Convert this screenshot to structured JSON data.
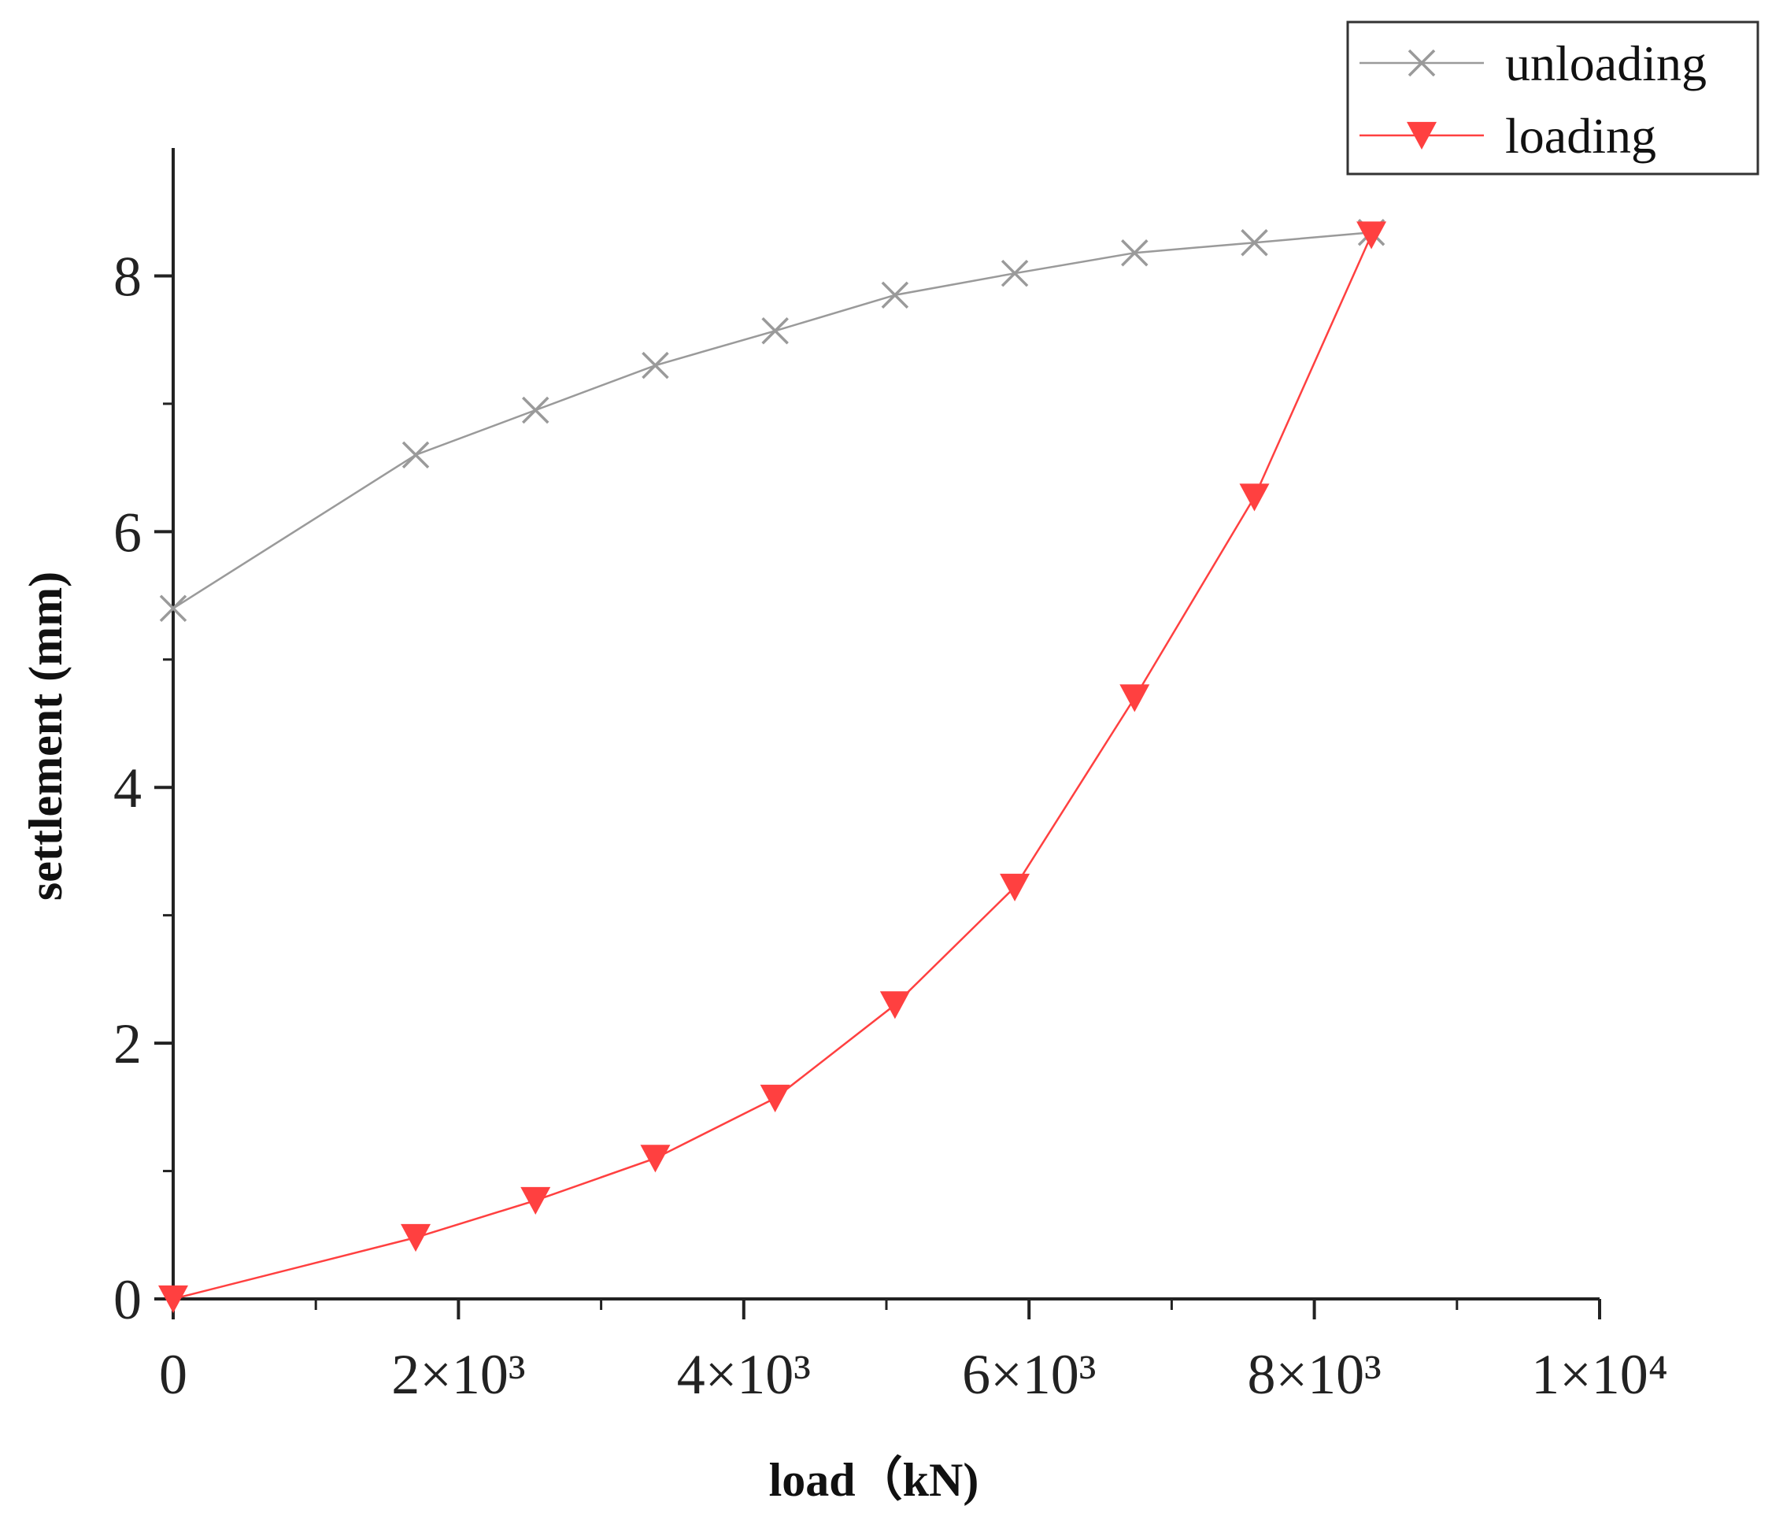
{
  "chart_data": {
    "type": "line",
    "title": "",
    "xlabel": "load（kN)",
    "ylabel": "settlement (mm)",
    "xlim": [
      0,
      10000
    ],
    "ylim": [
      0,
      9
    ],
    "grid": false,
    "legend_position": "top-right",
    "x_ticks": [
      {
        "value": 0,
        "label": "0"
      },
      {
        "value": 2000,
        "label": "2×10³"
      },
      {
        "value": 4000,
        "label": "4×10³"
      },
      {
        "value": 6000,
        "label": "6×10³"
      },
      {
        "value": 8000,
        "label": "8×10³"
      },
      {
        "value": 10000,
        "label": "1×10⁴"
      }
    ],
    "y_ticks": [
      {
        "value": 0,
        "label": "0"
      },
      {
        "value": 2,
        "label": "2"
      },
      {
        "value": 4,
        "label": "4"
      },
      {
        "value": 6,
        "label": "6"
      },
      {
        "value": 8,
        "label": "8"
      }
    ],
    "series": [
      {
        "name": "unloading",
        "color": "#9a9a9a",
        "marker": "x",
        "x": [
          0,
          1700,
          2540,
          3380,
          4220,
          5060,
          5900,
          6740,
          7580,
          8400
        ],
        "y": [
          5.4,
          6.6,
          6.95,
          7.3,
          7.57,
          7.85,
          8.02,
          8.18,
          8.26,
          8.34
        ]
      },
      {
        "name": "loading",
        "color": "#ff4040",
        "marker": "triangle-down",
        "x": [
          0,
          1700,
          2540,
          3380,
          4220,
          5060,
          5900,
          6740,
          7580,
          8400
        ],
        "y": [
          0,
          0.48,
          0.77,
          1.1,
          1.57,
          2.3,
          3.22,
          4.7,
          6.27,
          8.32
        ]
      }
    ]
  }
}
